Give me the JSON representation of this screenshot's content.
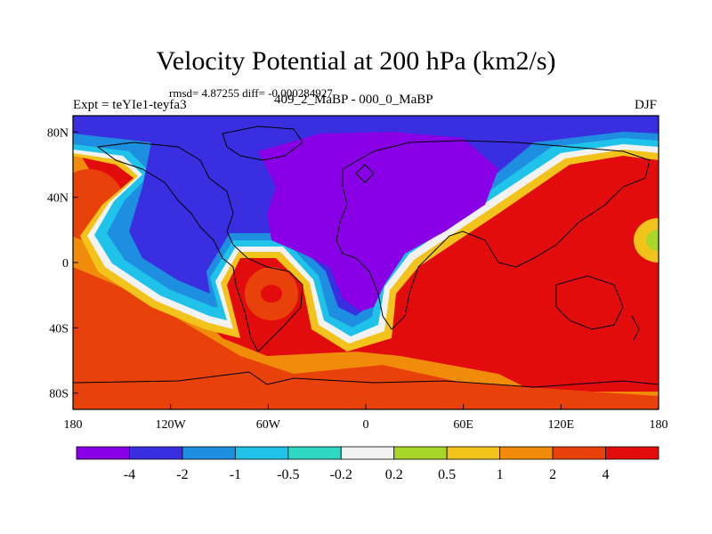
{
  "title": "Velocity Potential at 200 hPa (km2/s)",
  "stats": "rmsd= 4.87255 diff= -0.000284927",
  "experiment": "Expt = teYIe1-teyfa3",
  "comparison": "409_2_MaBP - 000_0_MaBP",
  "season": "DJF",
  "map": {
    "projection": "cylindrical-equidistant",
    "lon_range": [
      -180,
      180
    ],
    "lat_range": [
      -90,
      90
    ],
    "lon_ticks": [
      {
        "value": -180,
        "label": "180"
      },
      {
        "value": -120,
        "label": "120W"
      },
      {
        "value": -60,
        "label": "60W"
      },
      {
        "value": 0,
        "label": "0"
      },
      {
        "value": 60,
        "label": "60E"
      },
      {
        "value": 120,
        "label": "120E"
      },
      {
        "value": 180,
        "label": "180"
      }
    ],
    "lat_ticks": [
      {
        "value": 80,
        "label": "80N"
      },
      {
        "value": 40,
        "label": "40N"
      },
      {
        "value": 0,
        "label": "0"
      },
      {
        "value": -40,
        "label": "40S"
      },
      {
        "value": -80,
        "label": "80S"
      }
    ]
  },
  "colorbar": {
    "colors": [
      "#8a00e6",
      "#3a2fe0",
      "#1e8fe0",
      "#1fc3ea",
      "#2ed7c2",
      "#f2f2f2",
      "#a8d62a",
      "#f2c31a",
      "#f08c0a",
      "#e8420a",
      "#e20c0c"
    ],
    "labels": [
      "-4",
      "-2",
      "-1",
      "-0.5",
      "-0.2",
      "0.2",
      "0.5",
      "1",
      "2",
      "4"
    ]
  }
}
